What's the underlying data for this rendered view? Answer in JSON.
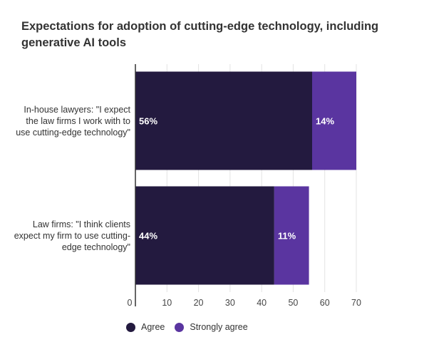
{
  "chart_data": {
    "type": "bar",
    "orientation": "horizontal",
    "stacked": true,
    "title": "Expectations for adoption of cutting-edge technology, including generative AI tools",
    "categories": [
      "In-house lawyers: \"I expect the law firms I work with to use cutting-edge technology\"",
      "Law firms: \"I think clients expect my firm to use cutting-edge technology\""
    ],
    "series": [
      {
        "name": "Agree",
        "values": [
          56,
          44
        ],
        "labels": [
          "56%",
          "44%"
        ],
        "color": "#231a3f"
      },
      {
        "name": "Strongly agree",
        "values": [
          14,
          11
        ],
        "labels": [
          "14%",
          "11%"
        ],
        "color": "#5a35a0"
      }
    ],
    "xlim": [
      0,
      70
    ],
    "xticks": [
      0,
      10,
      20,
      30,
      40,
      50,
      60,
      70
    ],
    "grid": true,
    "legend_position": "bottom"
  }
}
